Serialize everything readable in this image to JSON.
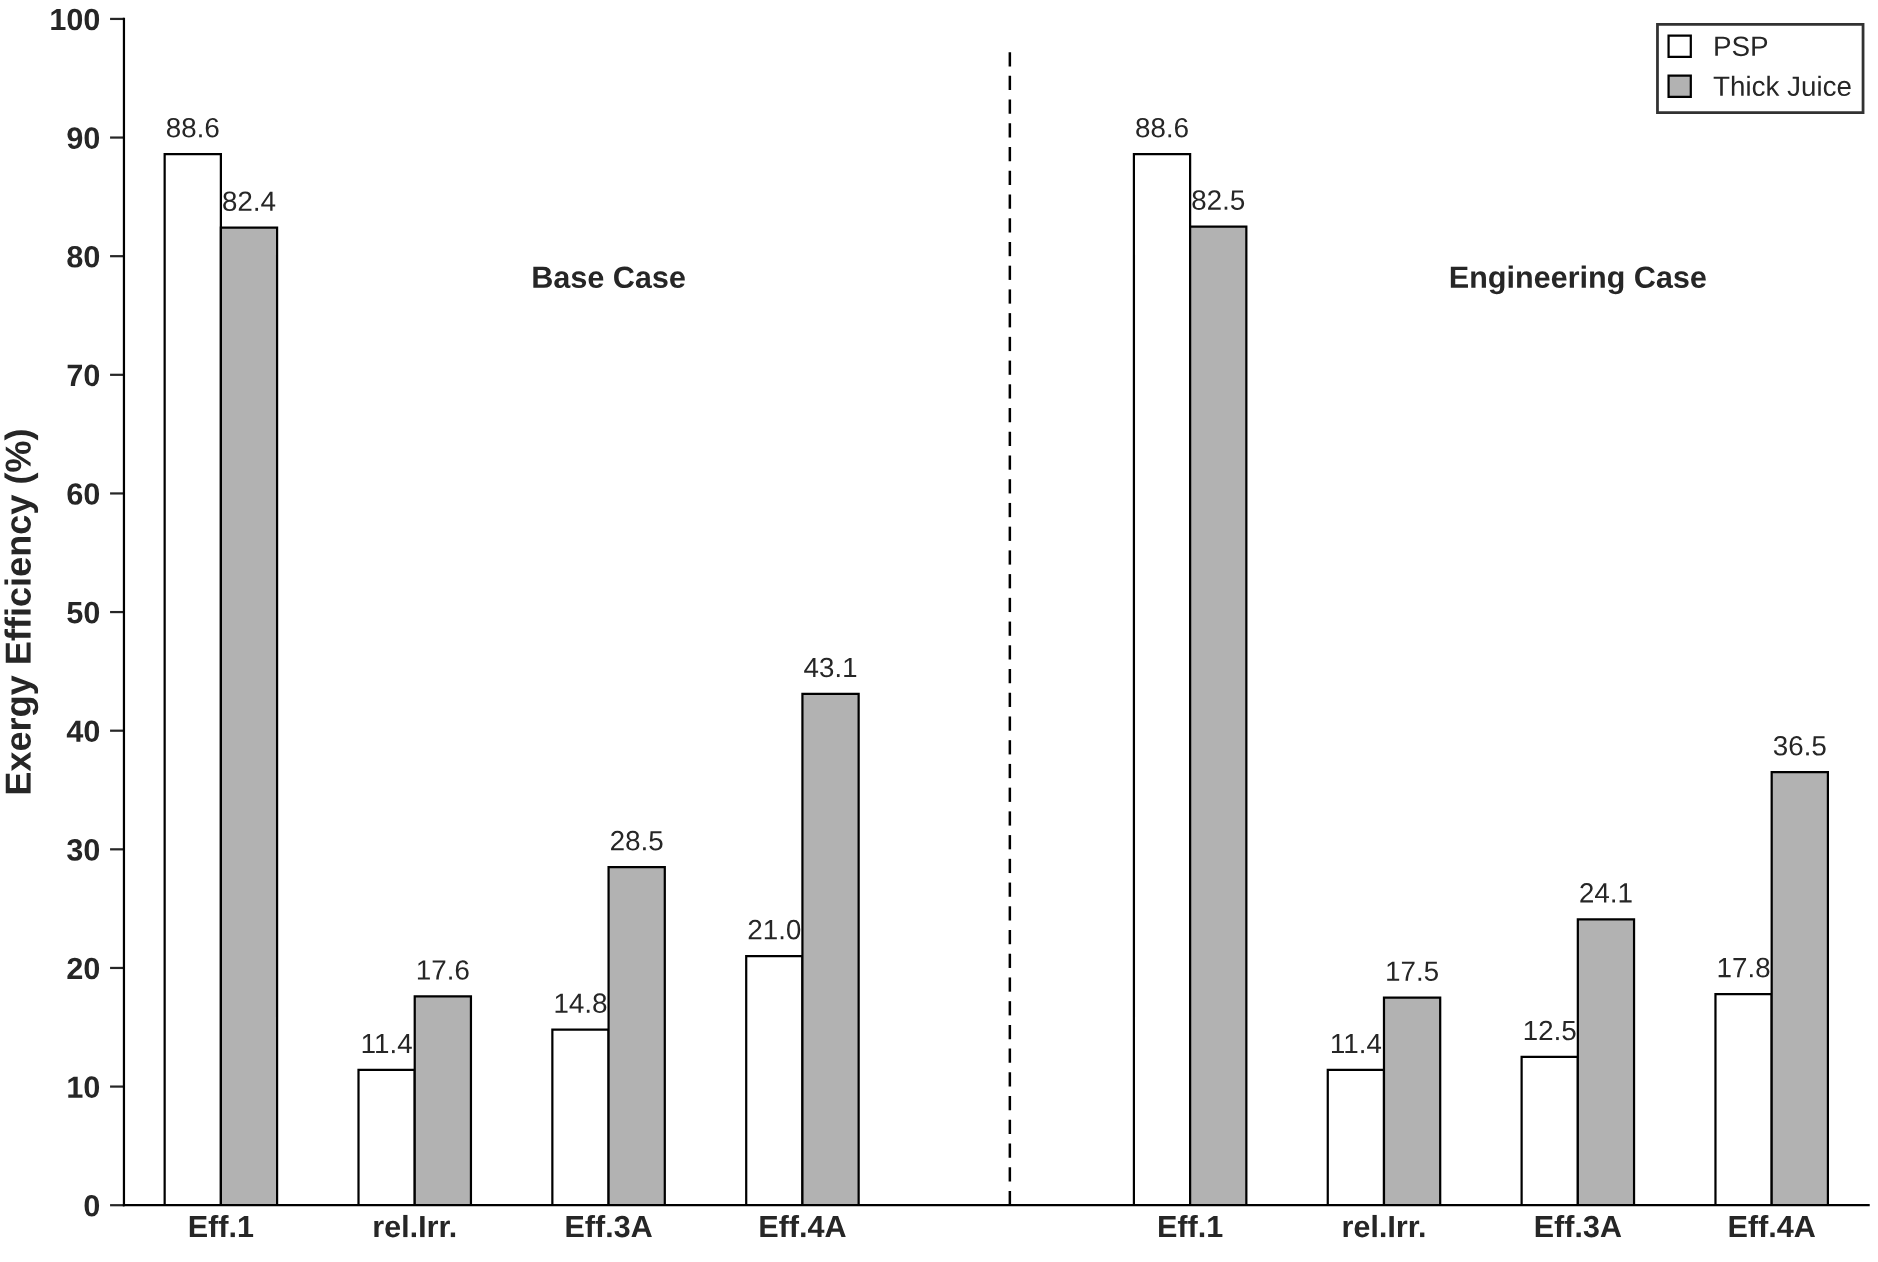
{
  "chart_data": {
    "type": "bar",
    "ylabel": "Exergy Efficiency (%)",
    "categories": [
      "Eff.1",
      "rel.Irr.",
      "Eff.3A",
      "Eff.4A",
      null,
      "Eff.1",
      "rel.Irr.",
      "Eff.3A",
      "Eff.4A"
    ],
    "series": [
      {
        "name": "PSP",
        "color": "#ffffff",
        "values": [
          88.6,
          11.4,
          14.8,
          21.0,
          null,
          88.6,
          11.4,
          12.5,
          17.8
        ],
        "value_labels": [
          "88.6",
          "11.4",
          "14.8",
          "21.0",
          null,
          "88.6",
          "11.4",
          "12.5",
          "17.8"
        ]
      },
      {
        "name": "Thick Juice",
        "color": "#b2b2b2",
        "values": [
          82.4,
          17.6,
          28.5,
          43.1,
          null,
          82.5,
          17.5,
          24.1,
          36.5
        ],
        "value_labels": [
          "82.4",
          "17.6",
          "28.5",
          "43.1",
          null,
          "82.5",
          "17.5",
          "24.1",
          "36.5"
        ]
      }
    ],
    "annotations": [
      "Base Case",
      "Engineering Case"
    ],
    "ylim": [
      0,
      100
    ],
    "yticks": [
      0,
      10,
      20,
      30,
      40,
      50,
      60,
      70,
      80,
      90,
      100
    ],
    "grid": false,
    "legend": "top right"
  }
}
